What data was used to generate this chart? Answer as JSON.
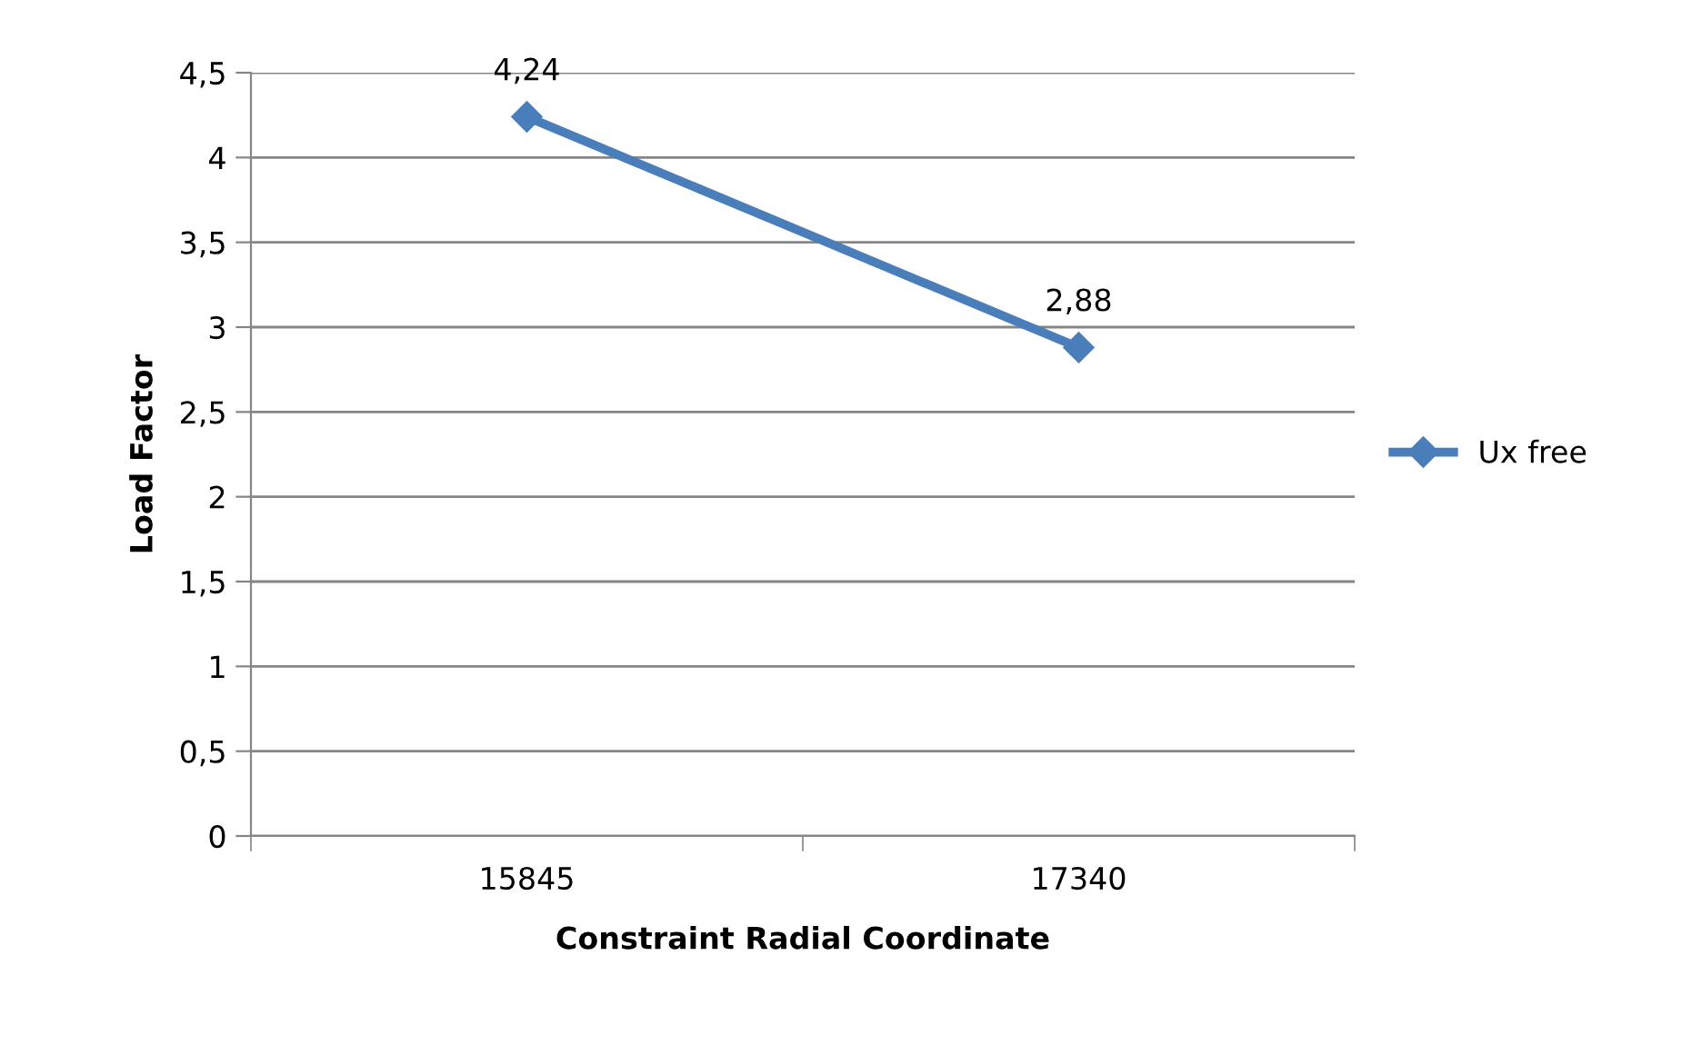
{
  "chart_data": {
    "type": "line",
    "xlabel": "Constraint Radial Coordinate",
    "ylabel": "Load Factor",
    "categories": [
      "15845",
      "17340"
    ],
    "series": [
      {
        "name": "Ux free",
        "color": "#4a7ebb",
        "values": [
          4.24,
          2.88
        ],
        "value_labels": [
          "4,24",
          "2,88"
        ]
      }
    ],
    "ylim": [
      0,
      4.5
    ],
    "yticks": [
      0,
      {
        "value": 0.5,
        "label": "0,5"
      },
      1,
      {
        "value": 1.5,
        "label": "1,5"
      },
      2,
      {
        "value": 2.5,
        "label": "2,5"
      },
      3,
      {
        "value": 3.5,
        "label": "3,5"
      },
      4,
      {
        "value": 4.5,
        "label": "4,5"
      }
    ],
    "grid": "y",
    "legend": "right",
    "marker": "diamond",
    "line_style": "solid"
  }
}
